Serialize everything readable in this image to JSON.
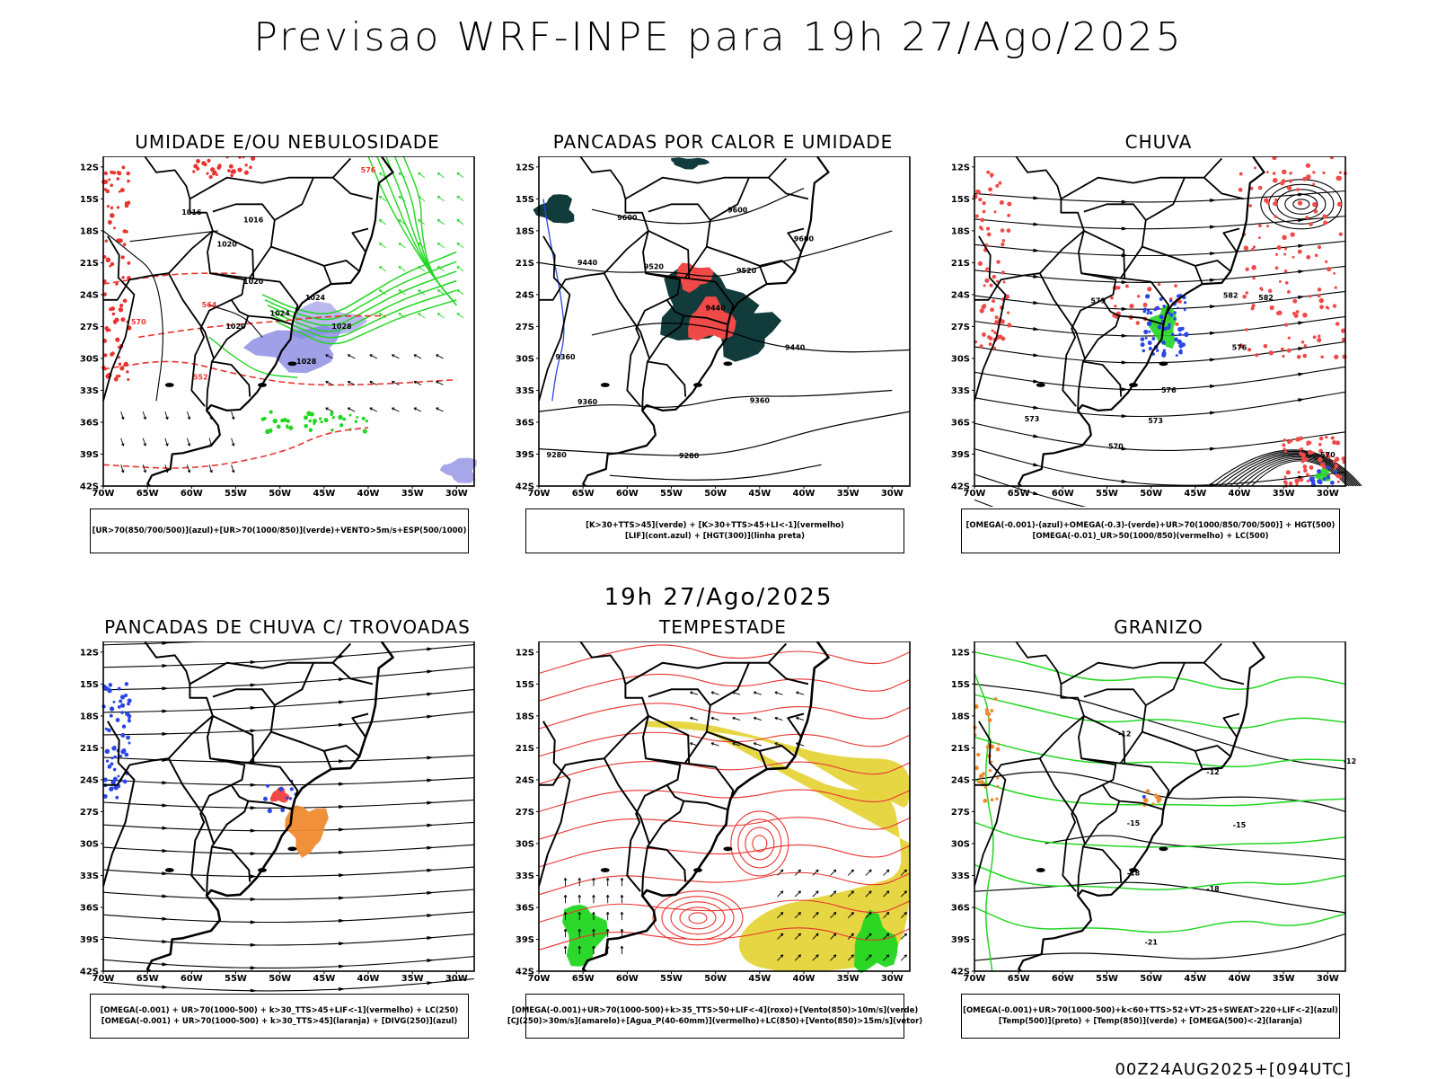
{
  "main_title": "Previsao WRF-INPE  para 19h 27/Ago/2025",
  "mid_title": "19h 27/Ago/2025",
  "footer_stamp": "00Z24AUG2025+[094UTC]",
  "axes": {
    "lat_labels": [
      "12S",
      "15S",
      "18S",
      "21S",
      "24S",
      "27S",
      "30S",
      "33S",
      "36S",
      "39S",
      "42S"
    ],
    "lon_labels": [
      "70W",
      "65W",
      "60W",
      "55W",
      "50W",
      "45W",
      "40W",
      "35W",
      "30W"
    ]
  },
  "panels": [
    {
      "title": "UMIDADE E/OU NEBULOSIDADE",
      "legend": [
        "[UR>70(850/700/500)](azul)+[UR>70(1000/850)](verde)+VENTO>5m/s+ESP(500/1000)"
      ],
      "contour_labels": [
        "1016",
        "1016",
        "1020",
        "1020",
        "1024",
        "1024",
        "1028",
        "1028",
        "1020",
        "552",
        "564",
        "570",
        "576"
      ]
    },
    {
      "title": "PANCADAS POR CALOR E UMIDADE",
      "legend": [
        "[K>30+TTS>45](verde) + [K>30+TTS>45+LI<-1](vermelho)",
        "[LIF](cont.azul) + [HGT(300)](linha preta)"
      ],
      "contour_labels": [
        "9600",
        "9600",
        "9600",
        "9520",
        "9520",
        "9440",
        "9440",
        "9440",
        "9360",
        "9360",
        "9280",
        "9280",
        "9360"
      ]
    },
    {
      "title": "CHUVA",
      "legend": [
        "[OMEGA(-0.001)-(azul)+OMEGA(-0.3)-(verde)+UR>70(1000/850/700/500)] + HGT(500)",
        "[OMEGA(-0.01)_UR>50(1000/850)(vermelho) + LC(500)"
      ],
      "contour_labels": [
        "582",
        "582",
        "579",
        "576",
        "576",
        "573",
        "573",
        "570",
        "570"
      ]
    },
    {
      "title": "PANCADAS DE CHUVA C/ TROVOADAS",
      "legend": [
        "[OMEGA(-0.001) + UR>70(1000-500) + k>30_TTS>45+LIF<-1](vermelho) + LC(250)",
        "[OMEGA(-0.001) + UR>70(1000-500) + k>30_TTS>45](laranja) + [DIVG(250)](azul)"
      ],
      "contour_labels": []
    },
    {
      "title": "TEMPESTADE",
      "legend": [
        "[OMEGA(-0.001)+UR>70(1000-500)+k>35_TTS>50+LIF<-4](roxo)+[Vento(850)>10m/s](verde)",
        "[CJ(250)>30m/s](amarelo)+[Agua_P(40-60mm)](vermelho)+LC(850)+[Vento(850)>15m/s](vetor)"
      ],
      "contour_labels": []
    },
    {
      "title": "GRANIZO",
      "legend": [
        "[OMEGA(-0.001)+UR>70(1000-500)+k<60+TTS>52+VT>25+SWEAT>220+LIF<-2](azul)",
        "[Temp(500)](preto) + [Temp(850)](verde) + [OMEGA(500)<-2](laranja)"
      ],
      "contour_labels": [
        "-12",
        "-12",
        "-12",
        "-15",
        "-15",
        "-18",
        "-18",
        "-21"
      ]
    }
  ],
  "colors": {
    "red_dashed": "#e8342f",
    "green": "#22d622",
    "blue": "#2a46e6",
    "purple_shade": "#8080e0",
    "dark_teal": "#123c3c",
    "red_fill": "#f04a48",
    "orange": "#f08a30",
    "yellow": "#e6d43a",
    "streamline": "#000000"
  }
}
